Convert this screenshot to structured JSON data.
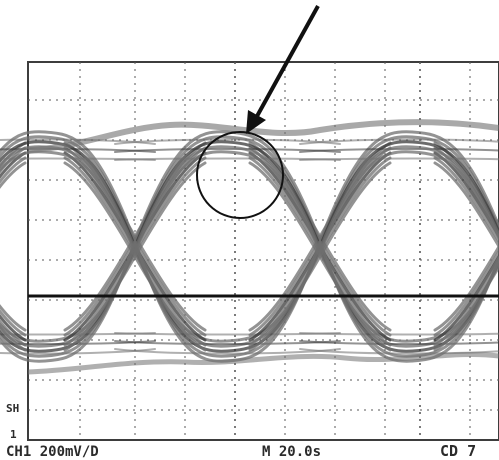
{
  "screen": {
    "channel_readout": "CH1  200mV/D",
    "timebase_readout": "M 20.0s",
    "right_readout": "CD 7",
    "side_marker_top": "SH",
    "side_marker_bottom": "1"
  },
  "colors": {
    "background": "#ffffff",
    "grid": "#5a5a5a",
    "trace": "#6f6f6f",
    "trace_dark": "#3a3a3a",
    "annotation": "#111111"
  },
  "annotations": {
    "arrow": "arrow-pointer",
    "highlight": "circle-marker"
  }
}
